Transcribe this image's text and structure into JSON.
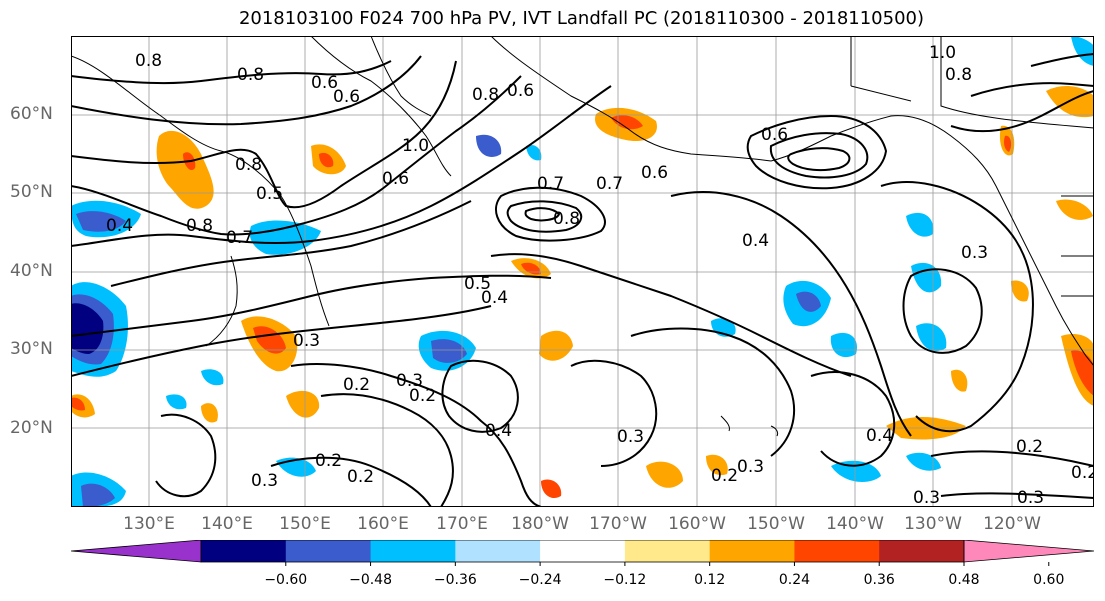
{
  "title": "2018103100 F024 700 hPa PV, IVT Landfall PC (2018110300 - 2018110500)",
  "lat_labels": [
    "60°N",
    "50°N",
    "40°N",
    "30°N",
    "20°N"
  ],
  "lon_labels": [
    "130°E",
    "140°E",
    "150°E",
    "160°E",
    "170°E",
    "180°W",
    "170°W",
    "160°W",
    "150°W",
    "140°W",
    "130°W",
    "120°W"
  ],
  "contour_labels": [
    "0.8",
    "0.8",
    "0.6",
    "0.8",
    "0.6",
    "1.0",
    "0.8",
    "0.6",
    "0.5",
    "0.4",
    "0.8",
    "0.7",
    "0.6",
    "0.7",
    "0.8",
    "0.6",
    "0.7",
    "0.6",
    "1.0",
    "0.8",
    "0.4",
    "0.3",
    "0.5",
    "0.4",
    "0.3",
    "0.2",
    "0.3",
    "0.2",
    "0.4",
    "0.3",
    "0.2",
    "0.2",
    "0.3",
    "0.2",
    "0.3",
    "0.4",
    "0.3",
    "0.2",
    "0.3",
    "0.2"
  ],
  "colorbar": {
    "colors": [
      "#9932cc",
      "#000080",
      "#3a5ccc",
      "#00bfff",
      "#b0e2ff",
      "#ffffff",
      "#ffe98a",
      "#ffa500",
      "#ff4500",
      "#b22222",
      "#ff88bb"
    ],
    "tick_labels": [
      "−0.60",
      "−0.48",
      "−0.36",
      "−0.24",
      "−0.12",
      "0.12",
      "0.24",
      "0.36",
      "0.48",
      "0.60"
    ]
  },
  "colors": {
    "grid": "#999999",
    "contour": "#000000",
    "coast": "#000000"
  }
}
